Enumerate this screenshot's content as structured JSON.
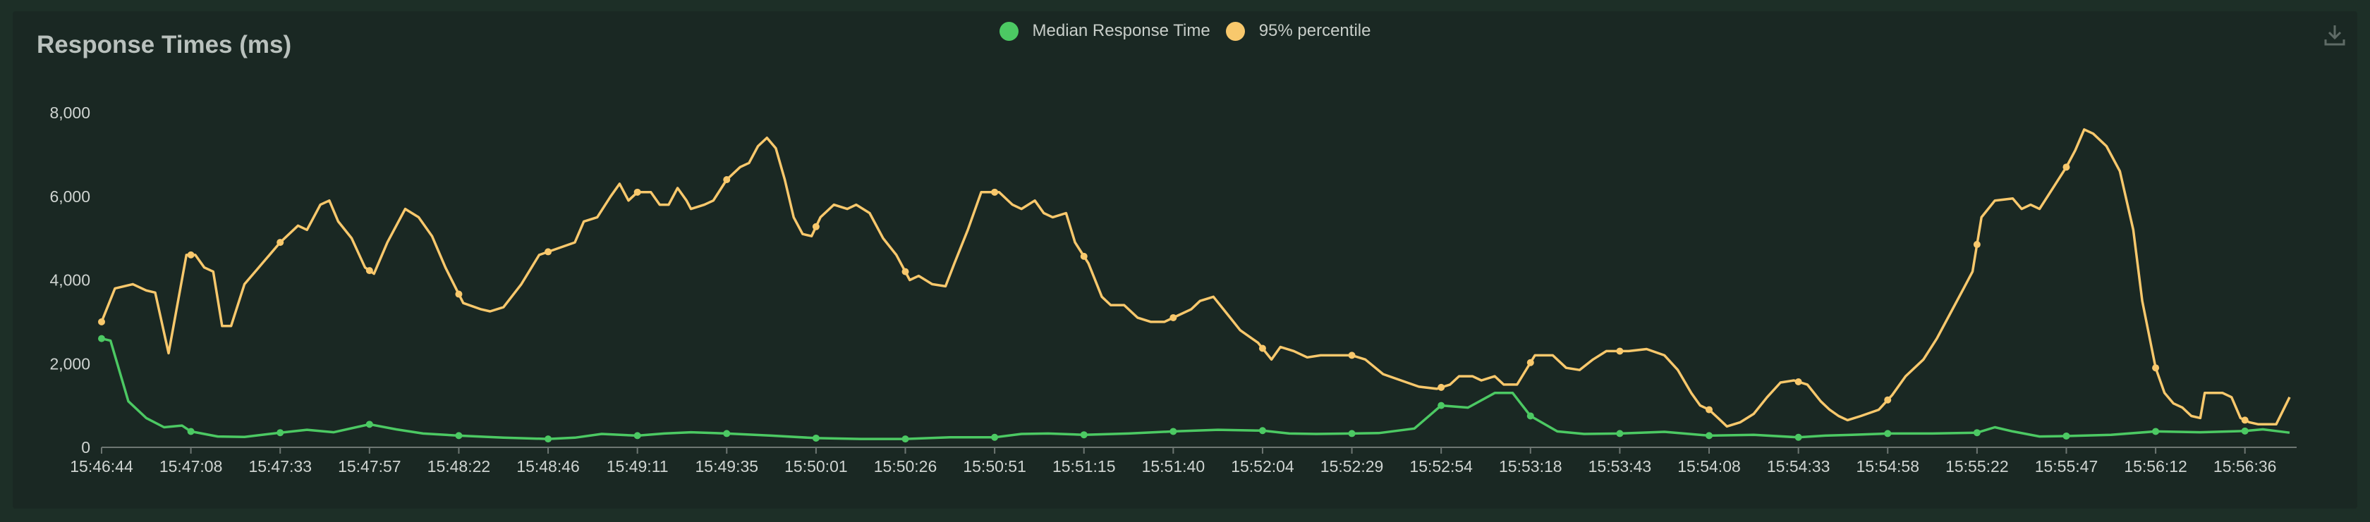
{
  "chart_data": {
    "type": "line",
    "title": "Response Times (ms)",
    "xlabel": "",
    "ylabel": "",
    "ylim": [
      0,
      8000
    ],
    "y_ticks": [
      0,
      2000,
      4000,
      6000,
      8000
    ],
    "y_tick_labels": [
      "0",
      "2,000",
      "4,000",
      "6,000",
      "8,000"
    ],
    "x_tick_labels": [
      "15:46:44",
      "15:47:08",
      "15:47:33",
      "15:47:57",
      "15:48:22",
      "15:48:46",
      "15:49:11",
      "15:49:35",
      "15:50:01",
      "15:50:26",
      "15:50:51",
      "15:51:15",
      "15:51:40",
      "15:52:04",
      "15:52:29",
      "15:52:54",
      "15:53:18",
      "15:53:43",
      "15:54:08",
      "15:54:33",
      "15:54:58",
      "15:55:22",
      "15:55:47",
      "15:56:12",
      "15:56:36"
    ],
    "x_range": [
      0,
      24.5
    ],
    "grid": false,
    "legend_position": "top-center",
    "series": [
      {
        "name": "Median Response Time",
        "color": "#4cc963",
        "points": [
          [
            0,
            2600
          ],
          [
            0.1,
            2550
          ],
          [
            0.3,
            1100
          ],
          [
            0.5,
            700
          ],
          [
            0.7,
            480
          ],
          [
            0.9,
            520
          ],
          [
            1.0,
            380
          ],
          [
            1.3,
            260
          ],
          [
            1.6,
            250
          ],
          [
            2.0,
            350
          ],
          [
            2.3,
            420
          ],
          [
            2.6,
            360
          ],
          [
            3.0,
            550
          ],
          [
            3.3,
            430
          ],
          [
            3.6,
            330
          ],
          [
            4.0,
            280
          ],
          [
            4.5,
            230
          ],
          [
            5.0,
            200
          ],
          [
            5.3,
            230
          ],
          [
            5.6,
            320
          ],
          [
            6.0,
            280
          ],
          [
            6.3,
            330
          ],
          [
            6.6,
            360
          ],
          [
            7.0,
            330
          ],
          [
            7.5,
            280
          ],
          [
            8.0,
            220
          ],
          [
            8.5,
            200
          ],
          [
            9.0,
            200
          ],
          [
            9.5,
            240
          ],
          [
            10.0,
            240
          ],
          [
            10.3,
            320
          ],
          [
            10.6,
            330
          ],
          [
            11.0,
            300
          ],
          [
            11.5,
            330
          ],
          [
            12.0,
            380
          ],
          [
            12.5,
            420
          ],
          [
            13.0,
            400
          ],
          [
            13.3,
            330
          ],
          [
            13.6,
            320
          ],
          [
            14.0,
            330
          ],
          [
            14.3,
            340
          ],
          [
            14.7,
            450
          ],
          [
            15.0,
            1000
          ],
          [
            15.3,
            950
          ],
          [
            15.6,
            1300
          ],
          [
            15.8,
            1300
          ],
          [
            16.0,
            750
          ],
          [
            16.3,
            380
          ],
          [
            16.6,
            320
          ],
          [
            17.0,
            330
          ],
          [
            17.5,
            370
          ],
          [
            18.0,
            280
          ],
          [
            18.5,
            300
          ],
          [
            19.0,
            240
          ],
          [
            19.3,
            280
          ],
          [
            19.6,
            300
          ],
          [
            20.0,
            330
          ],
          [
            20.5,
            330
          ],
          [
            21.0,
            350
          ],
          [
            21.2,
            480
          ],
          [
            21.4,
            380
          ],
          [
            21.7,
            260
          ],
          [
            22.0,
            270
          ],
          [
            22.5,
            300
          ],
          [
            23.0,
            380
          ],
          [
            23.5,
            360
          ],
          [
            24.0,
            390
          ],
          [
            24.2,
            430
          ],
          [
            24.5,
            350
          ]
        ]
      },
      {
        "name": "95% percentile",
        "color": "#f8c86c",
        "points": [
          [
            0,
            3000
          ],
          [
            0.15,
            3800
          ],
          [
            0.35,
            3900
          ],
          [
            0.5,
            3750
          ],
          [
            0.6,
            3700
          ],
          [
            0.75,
            2250
          ],
          [
            0.95,
            4600
          ],
          [
            1.05,
            4600
          ],
          [
            1.15,
            4300
          ],
          [
            1.25,
            4200
          ],
          [
            1.35,
            2900
          ],
          [
            1.45,
            2900
          ],
          [
            1.6,
            3900
          ],
          [
            1.8,
            4400
          ],
          [
            2.0,
            4900
          ],
          [
            2.2,
            5300
          ],
          [
            2.3,
            5200
          ],
          [
            2.45,
            5800
          ],
          [
            2.55,
            5900
          ],
          [
            2.65,
            5400
          ],
          [
            2.8,
            5000
          ],
          [
            2.95,
            4300
          ],
          [
            3.05,
            4150
          ],
          [
            3.2,
            4900
          ],
          [
            3.4,
            5700
          ],
          [
            3.55,
            5500
          ],
          [
            3.7,
            5050
          ],
          [
            3.85,
            4300
          ],
          [
            4.05,
            3450
          ],
          [
            4.25,
            3300
          ],
          [
            4.35,
            3250
          ],
          [
            4.5,
            3350
          ],
          [
            4.7,
            3900
          ],
          [
            4.9,
            4600
          ],
          [
            5.1,
            4750
          ],
          [
            5.3,
            4900
          ],
          [
            5.4,
            5400
          ],
          [
            5.55,
            5500
          ],
          [
            5.7,
            6000
          ],
          [
            5.8,
            6300
          ],
          [
            5.9,
            5900
          ],
          [
            6.0,
            6100
          ],
          [
            6.15,
            6100
          ],
          [
            6.25,
            5800
          ],
          [
            6.35,
            5800
          ],
          [
            6.45,
            6200
          ],
          [
            6.55,
            5900
          ],
          [
            6.6,
            5700
          ],
          [
            6.75,
            5800
          ],
          [
            6.85,
            5900
          ],
          [
            7.0,
            6400
          ],
          [
            7.15,
            6700
          ],
          [
            7.25,
            6800
          ],
          [
            7.35,
            7200
          ],
          [
            7.45,
            7400
          ],
          [
            7.55,
            7150
          ],
          [
            7.65,
            6400
          ],
          [
            7.75,
            5500
          ],
          [
            7.85,
            5100
          ],
          [
            7.95,
            5050
          ],
          [
            8.05,
            5500
          ],
          [
            8.2,
            5800
          ],
          [
            8.35,
            5700
          ],
          [
            8.45,
            5800
          ],
          [
            8.6,
            5600
          ],
          [
            8.75,
            5000
          ],
          [
            8.9,
            4600
          ],
          [
            9.05,
            4000
          ],
          [
            9.15,
            4100
          ],
          [
            9.3,
            3900
          ],
          [
            9.45,
            3850
          ],
          [
            9.55,
            4400
          ],
          [
            9.7,
            5200
          ],
          [
            9.85,
            6100
          ],
          [
            10.05,
            6100
          ],
          [
            10.2,
            5800
          ],
          [
            10.3,
            5700
          ],
          [
            10.45,
            5900
          ],
          [
            10.55,
            5600
          ],
          [
            10.65,
            5500
          ],
          [
            10.8,
            5600
          ],
          [
            10.9,
            4900
          ],
          [
            11.05,
            4400
          ],
          [
            11.2,
            3600
          ],
          [
            11.3,
            3400
          ],
          [
            11.45,
            3400
          ],
          [
            11.6,
            3100
          ],
          [
            11.75,
            3000
          ],
          [
            11.9,
            3000
          ],
          [
            12.05,
            3150
          ],
          [
            12.2,
            3300
          ],
          [
            12.3,
            3500
          ],
          [
            12.45,
            3600
          ],
          [
            12.6,
            3200
          ],
          [
            12.75,
            2800
          ],
          [
            12.95,
            2500
          ],
          [
            13.1,
            2100
          ],
          [
            13.2,
            2400
          ],
          [
            13.35,
            2300
          ],
          [
            13.5,
            2150
          ],
          [
            13.65,
            2200
          ],
          [
            13.85,
            2200
          ],
          [
            14.0,
            2200
          ],
          [
            14.15,
            2100
          ],
          [
            14.35,
            1750
          ],
          [
            14.55,
            1600
          ],
          [
            14.75,
            1450
          ],
          [
            14.95,
            1400
          ],
          [
            15.1,
            1500
          ],
          [
            15.2,
            1700
          ],
          [
            15.35,
            1700
          ],
          [
            15.45,
            1600
          ],
          [
            15.6,
            1700
          ],
          [
            15.7,
            1500
          ],
          [
            15.85,
            1500
          ],
          [
            16.05,
            2200
          ],
          [
            16.25,
            2200
          ],
          [
            16.4,
            1900
          ],
          [
            16.55,
            1850
          ],
          [
            16.7,
            2100
          ],
          [
            16.85,
            2300
          ],
          [
            17.1,
            2300
          ],
          [
            17.3,
            2350
          ],
          [
            17.5,
            2200
          ],
          [
            17.65,
            1850
          ],
          [
            17.8,
            1300
          ],
          [
            17.9,
            1000
          ],
          [
            18.0,
            900
          ],
          [
            18.1,
            700
          ],
          [
            18.2,
            500
          ],
          [
            18.35,
            600
          ],
          [
            18.5,
            800
          ],
          [
            18.65,
            1200
          ],
          [
            18.8,
            1550
          ],
          [
            18.95,
            1600
          ],
          [
            19.1,
            1500
          ],
          [
            19.25,
            1100
          ],
          [
            19.35,
            900
          ],
          [
            19.45,
            750
          ],
          [
            19.55,
            650
          ],
          [
            19.7,
            750
          ],
          [
            19.9,
            900
          ],
          [
            20.05,
            1250
          ],
          [
            20.2,
            1700
          ],
          [
            20.4,
            2100
          ],
          [
            20.55,
            2600
          ],
          [
            20.7,
            3200
          ],
          [
            20.85,
            3800
          ],
          [
            20.95,
            4200
          ],
          [
            21.05,
            5500
          ],
          [
            21.2,
            5900
          ],
          [
            21.4,
            5950
          ],
          [
            21.5,
            5700
          ],
          [
            21.6,
            5800
          ],
          [
            21.7,
            5700
          ],
          [
            21.85,
            6200
          ],
          [
            22.0,
            6700
          ],
          [
            22.1,
            7100
          ],
          [
            22.2,
            7600
          ],
          [
            22.3,
            7500
          ],
          [
            22.45,
            7200
          ],
          [
            22.6,
            6600
          ],
          [
            22.75,
            5200
          ],
          [
            22.85,
            3500
          ],
          [
            23.0,
            1900
          ],
          [
            23.1,
            1300
          ],
          [
            23.2,
            1050
          ],
          [
            23.3,
            950
          ],
          [
            23.4,
            750
          ],
          [
            23.5,
            700
          ],
          [
            23.55,
            1300
          ],
          [
            23.75,
            1300
          ],
          [
            23.85,
            1200
          ],
          [
            23.95,
            700
          ],
          [
            24.05,
            600
          ],
          [
            24.15,
            550
          ],
          [
            24.35,
            550
          ],
          [
            24.5,
            1200
          ]
        ]
      }
    ]
  },
  "toolbar": {
    "download_icon": "download-icon"
  }
}
